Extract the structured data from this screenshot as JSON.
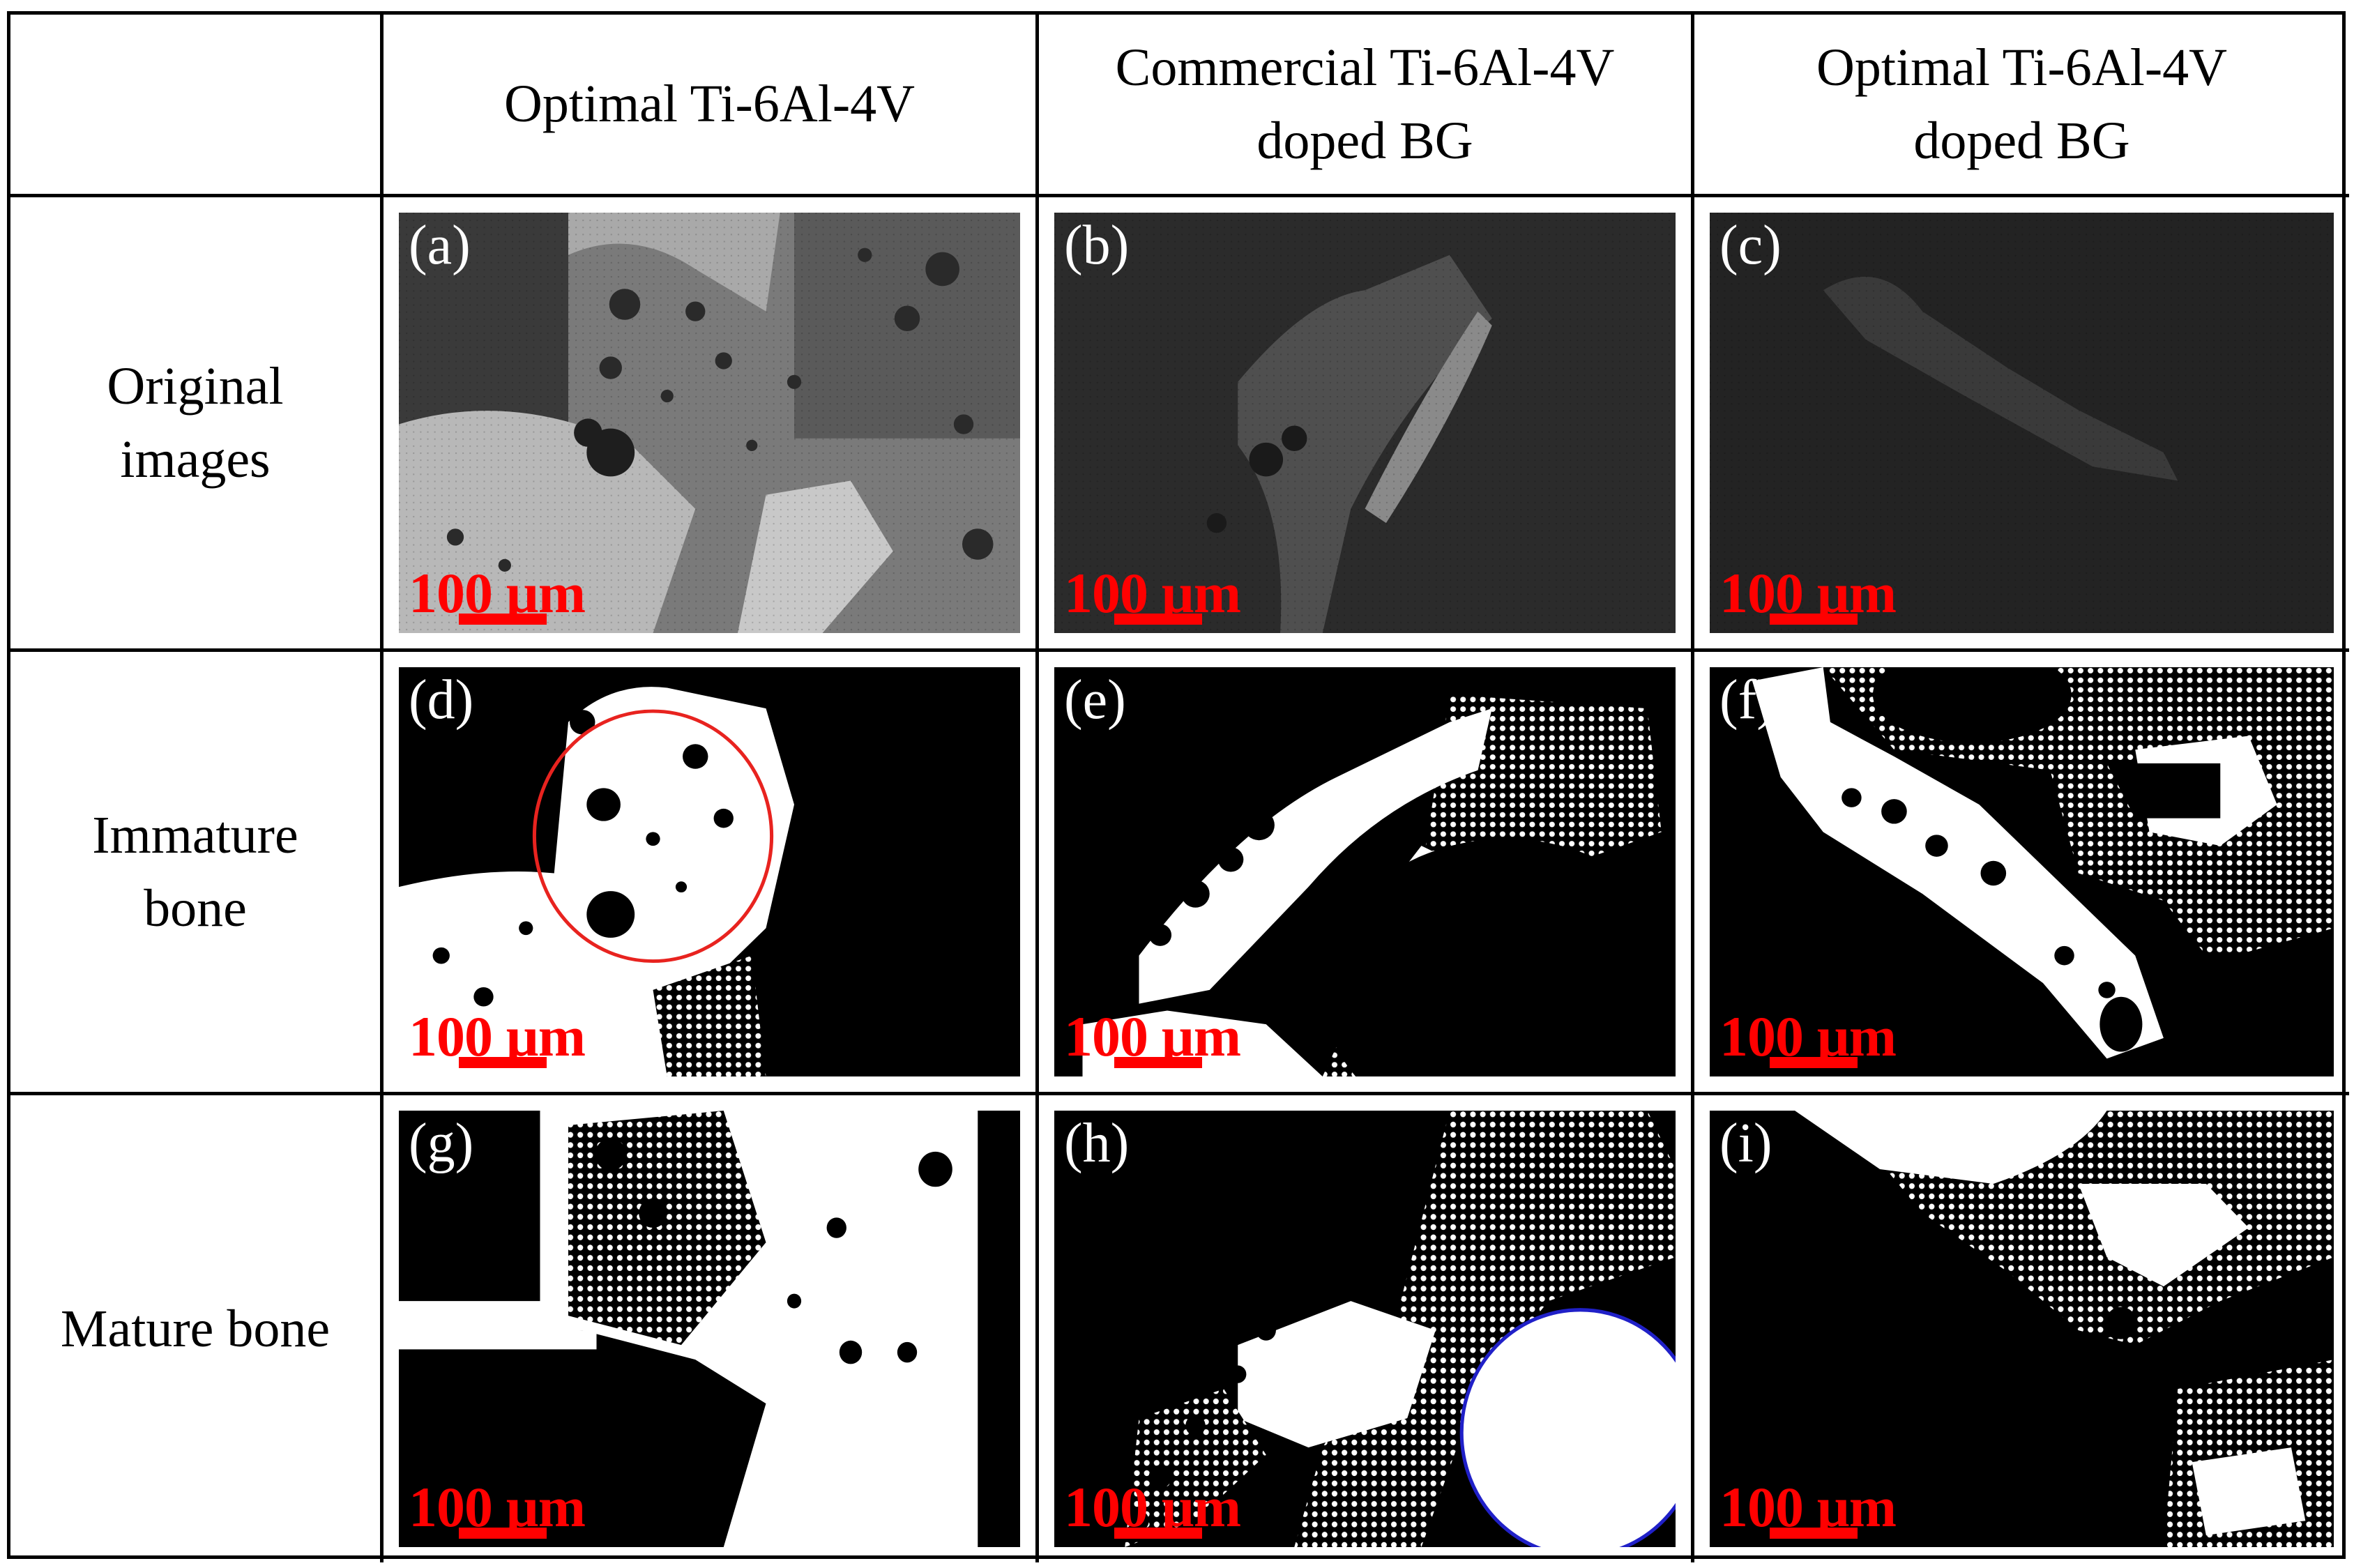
{
  "headers": {
    "corner": "",
    "col1": "Optimal Ti-6Al-4V",
    "col2_line1": "Commercial Ti-6Al-4V",
    "col2_line2": "doped BG",
    "col3_line1": "Optimal Ti-6Al-4V",
    "col3_line2": "doped BG"
  },
  "rows": {
    "row1_line1": "Original",
    "row1_line2": "images",
    "row2_line1": "Immature",
    "row2_line2": "bone",
    "row3": "Mature bone"
  },
  "panels": {
    "a": "(a)",
    "b": "(b)",
    "c": "(c)",
    "d": "(d)",
    "e": "(e)",
    "f": "(f)",
    "g": "(g)",
    "h": "(h)",
    "i": "(i)"
  },
  "scale_bar": "100 µm",
  "colors": {
    "scale_bar": "#ff0000",
    "highlight_circle_d": "#e8231f",
    "highlight_circle_h": "#2020c8"
  }
}
